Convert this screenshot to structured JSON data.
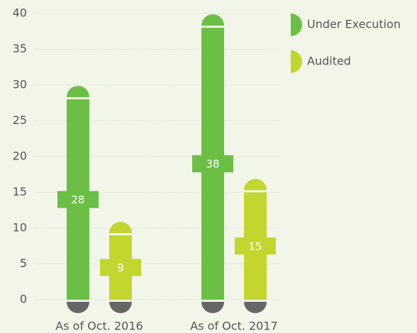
{
  "chart_data": {
    "type": "bar",
    "categories": [
      "As of Oct. 2016",
      "As of Oct. 2017"
    ],
    "series": [
      {
        "name": "Under Execution",
        "color": "#6cbf45",
        "values": [
          28,
          38
        ]
      },
      {
        "name": "Audited",
        "color": "#c2d62f",
        "values": [
          9,
          15
        ]
      }
    ],
    "ylim": [
      0,
      40
    ],
    "yticks": [
      0,
      5,
      10,
      15,
      20,
      25,
      30,
      35,
      40
    ],
    "grid": true
  }
}
